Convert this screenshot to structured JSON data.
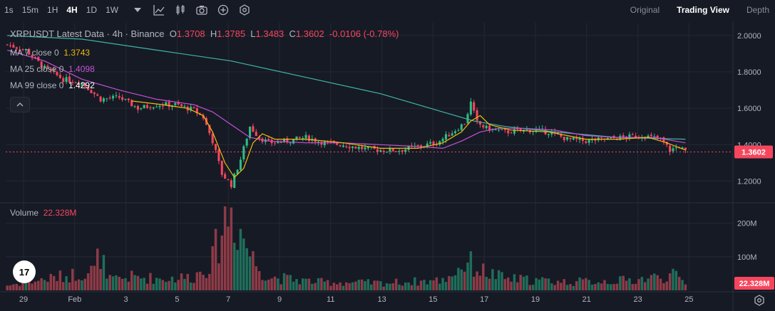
{
  "toolbar": {
    "timeframes": [
      "1s",
      "15m",
      "1H",
      "4H",
      "1D",
      "1W"
    ],
    "active_timeframe": "4H",
    "icons": [
      "chevron-down-icon",
      "indicators-icon",
      "candles-icon",
      "camera-icon",
      "plus-circle-icon",
      "settings-icon"
    ]
  },
  "views": [
    {
      "label": "Original",
      "active": false
    },
    {
      "label": "Trading View",
      "active": true
    },
    {
      "label": "Depth",
      "active": false
    }
  ],
  "legend": {
    "symbol": "XRPUSDT Latest Data · 4h · Binance",
    "o_label": "O",
    "o": "1.3708",
    "h_label": "H",
    "h": "1.3785",
    "l_label": "L",
    "l": "1.3483",
    "c_label": "C",
    "c": "1.3602",
    "change": "-0.0106 (-0.78%)",
    "ma7_label": "MA 7 close 0",
    "ma7": "1.3743",
    "ma25_label": "MA 25 close 0",
    "ma25": "1.4098",
    "ma99_label": "MA 99 close 0",
    "ma99": "1.4292"
  },
  "volume_legend": {
    "label": "Volume",
    "value": "22.328M"
  },
  "logo_text": "17",
  "colors": {
    "background": "#161a25",
    "up": "#2ebd85",
    "down": "#f6465d",
    "ma7": "#f0b90b",
    "ma25": "#c651d6",
    "ma99": "#3fb5a8",
    "grid": "#242833",
    "last_price_bg": "#f6465d"
  },
  "chart_data": {
    "type": "candlestick",
    "title": "XRPUSDT Latest Data · 4h · Binance",
    "price_axis": {
      "ticks": [
        "2.0000",
        "1.8000",
        "1.6000",
        "1.4000",
        "1.2000"
      ],
      "range": [
        1.1,
        2.07
      ]
    },
    "volume_axis": {
      "ticks": [
        "200M",
        "100M"
      ],
      "range": [
        0,
        250
      ]
    },
    "x_ticks": [
      "29",
      "Feb",
      "3",
      "5",
      "7",
      "9",
      "11",
      "13",
      "15",
      "17",
      "19",
      "21",
      "23",
      "25"
    ],
    "last_price": "1.3602",
    "last_volume": "22.328M",
    "price_path": [
      [
        0,
        1.95
      ],
      [
        6,
        1.92
      ],
      [
        12,
        1.82
      ],
      [
        18,
        1.76
      ],
      [
        24,
        1.74
      ],
      [
        30,
        1.65
      ],
      [
        36,
        1.66
      ],
      [
        42,
        1.6
      ],
      [
        48,
        1.62
      ],
      [
        54,
        1.62
      ],
      [
        60,
        1.59
      ],
      [
        63,
        1.55
      ],
      [
        66,
        1.42
      ],
      [
        69,
        1.24
      ],
      [
        72,
        1.18
      ],
      [
        75,
        1.32
      ],
      [
        78,
        1.5
      ],
      [
        81,
        1.44
      ],
      [
        84,
        1.41
      ],
      [
        90,
        1.42
      ],
      [
        96,
        1.44
      ],
      [
        102,
        1.41
      ],
      [
        108,
        1.4
      ],
      [
        114,
        1.38
      ],
      [
        120,
        1.37
      ],
      [
        126,
        1.37
      ],
      [
        132,
        1.39
      ],
      [
        138,
        1.41
      ],
      [
        144,
        1.48
      ],
      [
        147,
        1.52
      ],
      [
        149,
        1.63
      ],
      [
        151,
        1.52
      ],
      [
        154,
        1.49
      ],
      [
        160,
        1.47
      ],
      [
        168,
        1.48
      ],
      [
        174,
        1.47
      ],
      [
        180,
        1.43
      ],
      [
        186,
        1.42
      ],
      [
        192,
        1.43
      ],
      [
        198,
        1.44
      ],
      [
        204,
        1.45
      ],
      [
        210,
        1.43
      ],
      [
        213,
        1.37
      ],
      [
        216,
        1.39
      ],
      [
        218,
        1.36
      ]
    ],
    "ma7_path": [
      [
        40,
        1.64
      ],
      [
        50,
        1.62
      ],
      [
        58,
        1.6
      ],
      [
        63,
        1.56
      ],
      [
        66,
        1.47
      ],
      [
        70,
        1.3
      ],
      [
        73,
        1.22
      ],
      [
        76,
        1.27
      ],
      [
        79,
        1.41
      ],
      [
        82,
        1.46
      ],
      [
        86,
        1.43
      ],
      [
        96,
        1.43
      ],
      [
        108,
        1.41
      ],
      [
        120,
        1.38
      ],
      [
        132,
        1.38
      ],
      [
        140,
        1.41
      ],
      [
        146,
        1.47
      ],
      [
        149,
        1.53
      ],
      [
        152,
        1.56
      ],
      [
        155,
        1.51
      ],
      [
        162,
        1.48
      ],
      [
        174,
        1.47
      ],
      [
        186,
        1.43
      ],
      [
        196,
        1.43
      ],
      [
        206,
        1.44
      ],
      [
        212,
        1.41
      ],
      [
        218,
        1.37
      ]
    ],
    "ma25_path": [
      [
        0,
        1.92
      ],
      [
        12,
        1.86
      ],
      [
        24,
        1.76
      ],
      [
        36,
        1.7
      ],
      [
        48,
        1.65
      ],
      [
        60,
        1.62
      ],
      [
        66,
        1.58
      ],
      [
        72,
        1.51
      ],
      [
        78,
        1.44
      ],
      [
        84,
        1.42
      ],
      [
        96,
        1.41
      ],
      [
        108,
        1.41
      ],
      [
        120,
        1.4
      ],
      [
        132,
        1.39
      ],
      [
        140,
        1.38
      ],
      [
        146,
        1.42
      ],
      [
        152,
        1.47
      ],
      [
        158,
        1.49
      ],
      [
        166,
        1.49
      ],
      [
        176,
        1.48
      ],
      [
        186,
        1.45
      ],
      [
        196,
        1.44
      ],
      [
        208,
        1.44
      ],
      [
        218,
        1.41
      ]
    ],
    "ma99_path": [
      [
        0,
        2.0
      ],
      [
        24,
        1.98
      ],
      [
        48,
        1.92
      ],
      [
        72,
        1.86
      ],
      [
        96,
        1.77
      ],
      [
        120,
        1.68
      ],
      [
        140,
        1.58
      ],
      [
        150,
        1.53
      ],
      [
        160,
        1.5
      ],
      [
        176,
        1.47
      ],
      [
        196,
        1.44
      ],
      [
        218,
        1.43
      ]
    ],
    "volume_path": [
      [
        0,
        15
      ],
      [
        10,
        30
      ],
      [
        20,
        45
      ],
      [
        28,
        60
      ],
      [
        30,
        120
      ],
      [
        32,
        30
      ],
      [
        40,
        40
      ],
      [
        50,
        35
      ],
      [
        60,
        40
      ],
      [
        66,
        90
      ],
      [
        70,
        220
      ],
      [
        72,
        240
      ],
      [
        74,
        200
      ],
      [
        76,
        160
      ],
      [
        78,
        110
      ],
      [
        80,
        80
      ],
      [
        84,
        40
      ],
      [
        100,
        25
      ],
      [
        120,
        22
      ],
      [
        140,
        30
      ],
      [
        148,
        85
      ],
      [
        152,
        60
      ],
      [
        160,
        35
      ],
      [
        180,
        25
      ],
      [
        200,
        30
      ],
      [
        214,
        45
      ],
      [
        218,
        22
      ]
    ]
  }
}
